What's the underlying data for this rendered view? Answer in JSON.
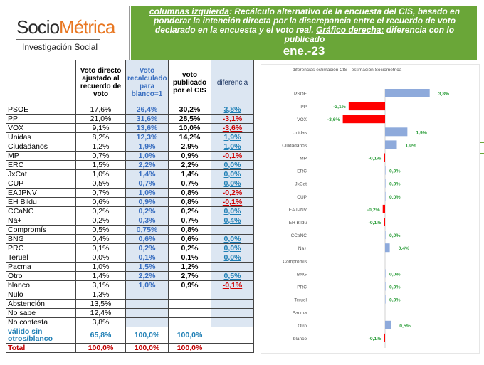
{
  "logo": {
    "name_part1": "Socio",
    "name_part2": "Métrica",
    "subtitle": "Investigación Social"
  },
  "banner": {
    "label_left": "columnas izquierda",
    "text_main": ": Recálculo alternativo de la encuesta del CIS, basado en ponderar la intención directa por la discrepancia entre el recuerdo de voto declarado en la encuesta y el voto real.",
    "label_right": "Gráfico derecha:",
    "text_right": " diferencia con lo publicado",
    "date": "ene.-23"
  },
  "table": {
    "headers": {
      "direct": "Voto directo ajustado al recuerdo de voto",
      "recalc": "Voto recalculado para blanco=1",
      "published": "voto publicado por el CIS",
      "difference": "diferencia"
    },
    "rows": [
      {
        "party": "PSOE",
        "direct": "17,6%",
        "recalc": "26,4%",
        "published": "30,2%",
        "diff": "3,8%",
        "sign": "pos"
      },
      {
        "party": "PP",
        "direct": "21,0%",
        "recalc": "31,6%",
        "published": "28,5%",
        "diff": "-3,1%",
        "sign": "neg"
      },
      {
        "party": "VOX",
        "direct": "9,1%",
        "recalc": "13,6%",
        "published": "10,0%",
        "diff": "-3,6%",
        "sign": "neg"
      },
      {
        "party": "Unidas",
        "direct": "8,2%",
        "recalc": "12,3%",
        "published": "14,2%",
        "diff": "1,9%",
        "sign": "pos"
      },
      {
        "party": "Ciudadanos",
        "direct": "1,2%",
        "recalc": "1,9%",
        "published": "2,9%",
        "diff": "1,0%",
        "sign": "pos"
      },
      {
        "party": "MP",
        "direct": "0,7%",
        "recalc": "1,0%",
        "published": "0,9%",
        "diff": "-0,1%",
        "sign": "neg"
      },
      {
        "party": "ERC",
        "direct": "1,5%",
        "recalc": "2,2%",
        "published": "2,2%",
        "diff": "0,0%",
        "sign": "pos"
      },
      {
        "party": "JxCat",
        "direct": "1,0%",
        "recalc": "1,4%",
        "published": "1,4%",
        "diff": "0,0%",
        "sign": "pos"
      },
      {
        "party": "CUP",
        "direct": "0,5%",
        "recalc": "0,7%",
        "published": "0,7%",
        "diff": "0,0%",
        "sign": "pos"
      },
      {
        "party": "EAJPNV",
        "direct": "0,7%",
        "recalc": "1,0%",
        "published": "0,8%",
        "diff": "-0,2%",
        "sign": "neg"
      },
      {
        "party": "EH Bildu",
        "direct": "0,6%",
        "recalc": "0,9%",
        "published": "0,8%",
        "diff": "-0,1%",
        "sign": "neg"
      },
      {
        "party": "CCaNC",
        "direct": "0,2%",
        "recalc": "0,2%",
        "published": "0,2%",
        "diff": "0,0%",
        "sign": "pos"
      },
      {
        "party": "Na+",
        "direct": "0,2%",
        "recalc": "0,3%",
        "published": "0,7%",
        "diff": "0,4%",
        "sign": "pos"
      },
      {
        "party": "Compromís",
        "direct": "0,5%",
        "recalc": "0,75%",
        "published": "0,8%",
        "diff": "",
        "sign": "pos"
      },
      {
        "party": "BNG",
        "direct": "0,4%",
        "recalc": "0,6%",
        "published": "0,6%",
        "diff": "0,0%",
        "sign": "pos"
      },
      {
        "party": "PRC",
        "direct": "0,1%",
        "recalc": "0,2%",
        "published": "0,2%",
        "diff": "0,0%",
        "sign": "pos"
      },
      {
        "party": "Teruel",
        "direct": "0,0%",
        "recalc": "0,1%",
        "published": "0,1%",
        "diff": "0,0%",
        "sign": "pos"
      },
      {
        "party": "Pacma",
        "direct": "1,0%",
        "recalc": "1,5%",
        "published": "1,2%",
        "diff": "",
        "sign": "pos"
      },
      {
        "party": "Otro",
        "direct": "1,4%",
        "recalc": "2,2%",
        "published": "2,7%",
        "diff": "0,5%",
        "sign": "pos"
      },
      {
        "party": "blanco",
        "direct": "3,1%",
        "recalc": "1,0%",
        "published": "0,9%",
        "diff": "-0,1%",
        "sign": "neg"
      },
      {
        "party": "Nulo",
        "direct": "1,3%",
        "recalc": "",
        "published": "",
        "diff": "",
        "sign": "pos"
      },
      {
        "party": "Abstención",
        "direct": "13,5%",
        "recalc": "",
        "published": "",
        "diff": "",
        "sign": "pos"
      },
      {
        "party": "No sabe",
        "direct": "12,4%",
        "recalc": "",
        "published": "",
        "diff": "",
        "sign": "pos"
      },
      {
        "party": "No contesta",
        "direct": "3,8%",
        "recalc": "",
        "published": "",
        "diff": "",
        "sign": "pos"
      }
    ],
    "valid_row": {
      "label": "válido sin otros/blanco",
      "direct": "65,8%",
      "recalc": "100,0%",
      "published": "100,0%"
    },
    "total_row": {
      "label": "Total",
      "direct": "100,0%",
      "recalc": "100,0%",
      "published": "100,0%"
    }
  },
  "chart_data": {
    "type": "bar",
    "orientation": "horizontal",
    "title": "diferencias estimación CIS - estimación Sociometrica",
    "categories": [
      "PSOE",
      "PP",
      "VOX",
      "Unidas",
      "Ciudadanos",
      "MP",
      "ERC",
      "JxCat",
      "CUP",
      "EAJPNV",
      "EH Bildu",
      "CCaNC",
      "Na+",
      "Compromís",
      "BNG",
      "PRC",
      "Teruel",
      "Pacma",
      "Otro",
      "blanco"
    ],
    "values": [
      3.8,
      -3.1,
      -3.6,
      1.9,
      1.0,
      -0.1,
      0.0,
      0.0,
      0.0,
      -0.2,
      -0.1,
      0.0,
      0.4,
      null,
      0.0,
      0.0,
      0.0,
      null,
      0.5,
      -0.1
    ],
    "labels": [
      "3,8%",
      "-3,1%",
      "-3,6%",
      "1,9%",
      "1,0%",
      "-0,1%",
      "0,0%",
      "0,0%",
      "0,0%",
      "-0,2%",
      "-0,1%",
      "0,0%",
      "0,4%",
      "",
      "0,0%",
      "0,0%",
      "0,0%",
      "",
      "0,5%",
      "-0,1%"
    ],
    "xlim": [
      -4.5,
      4.5
    ],
    "colors": {
      "positive": "#8eaadb",
      "negative": "#ff0000",
      "label_positive": "#2e9e3c",
      "label_negative": "#2e9e3c",
      "axis_label": "#555555"
    }
  }
}
